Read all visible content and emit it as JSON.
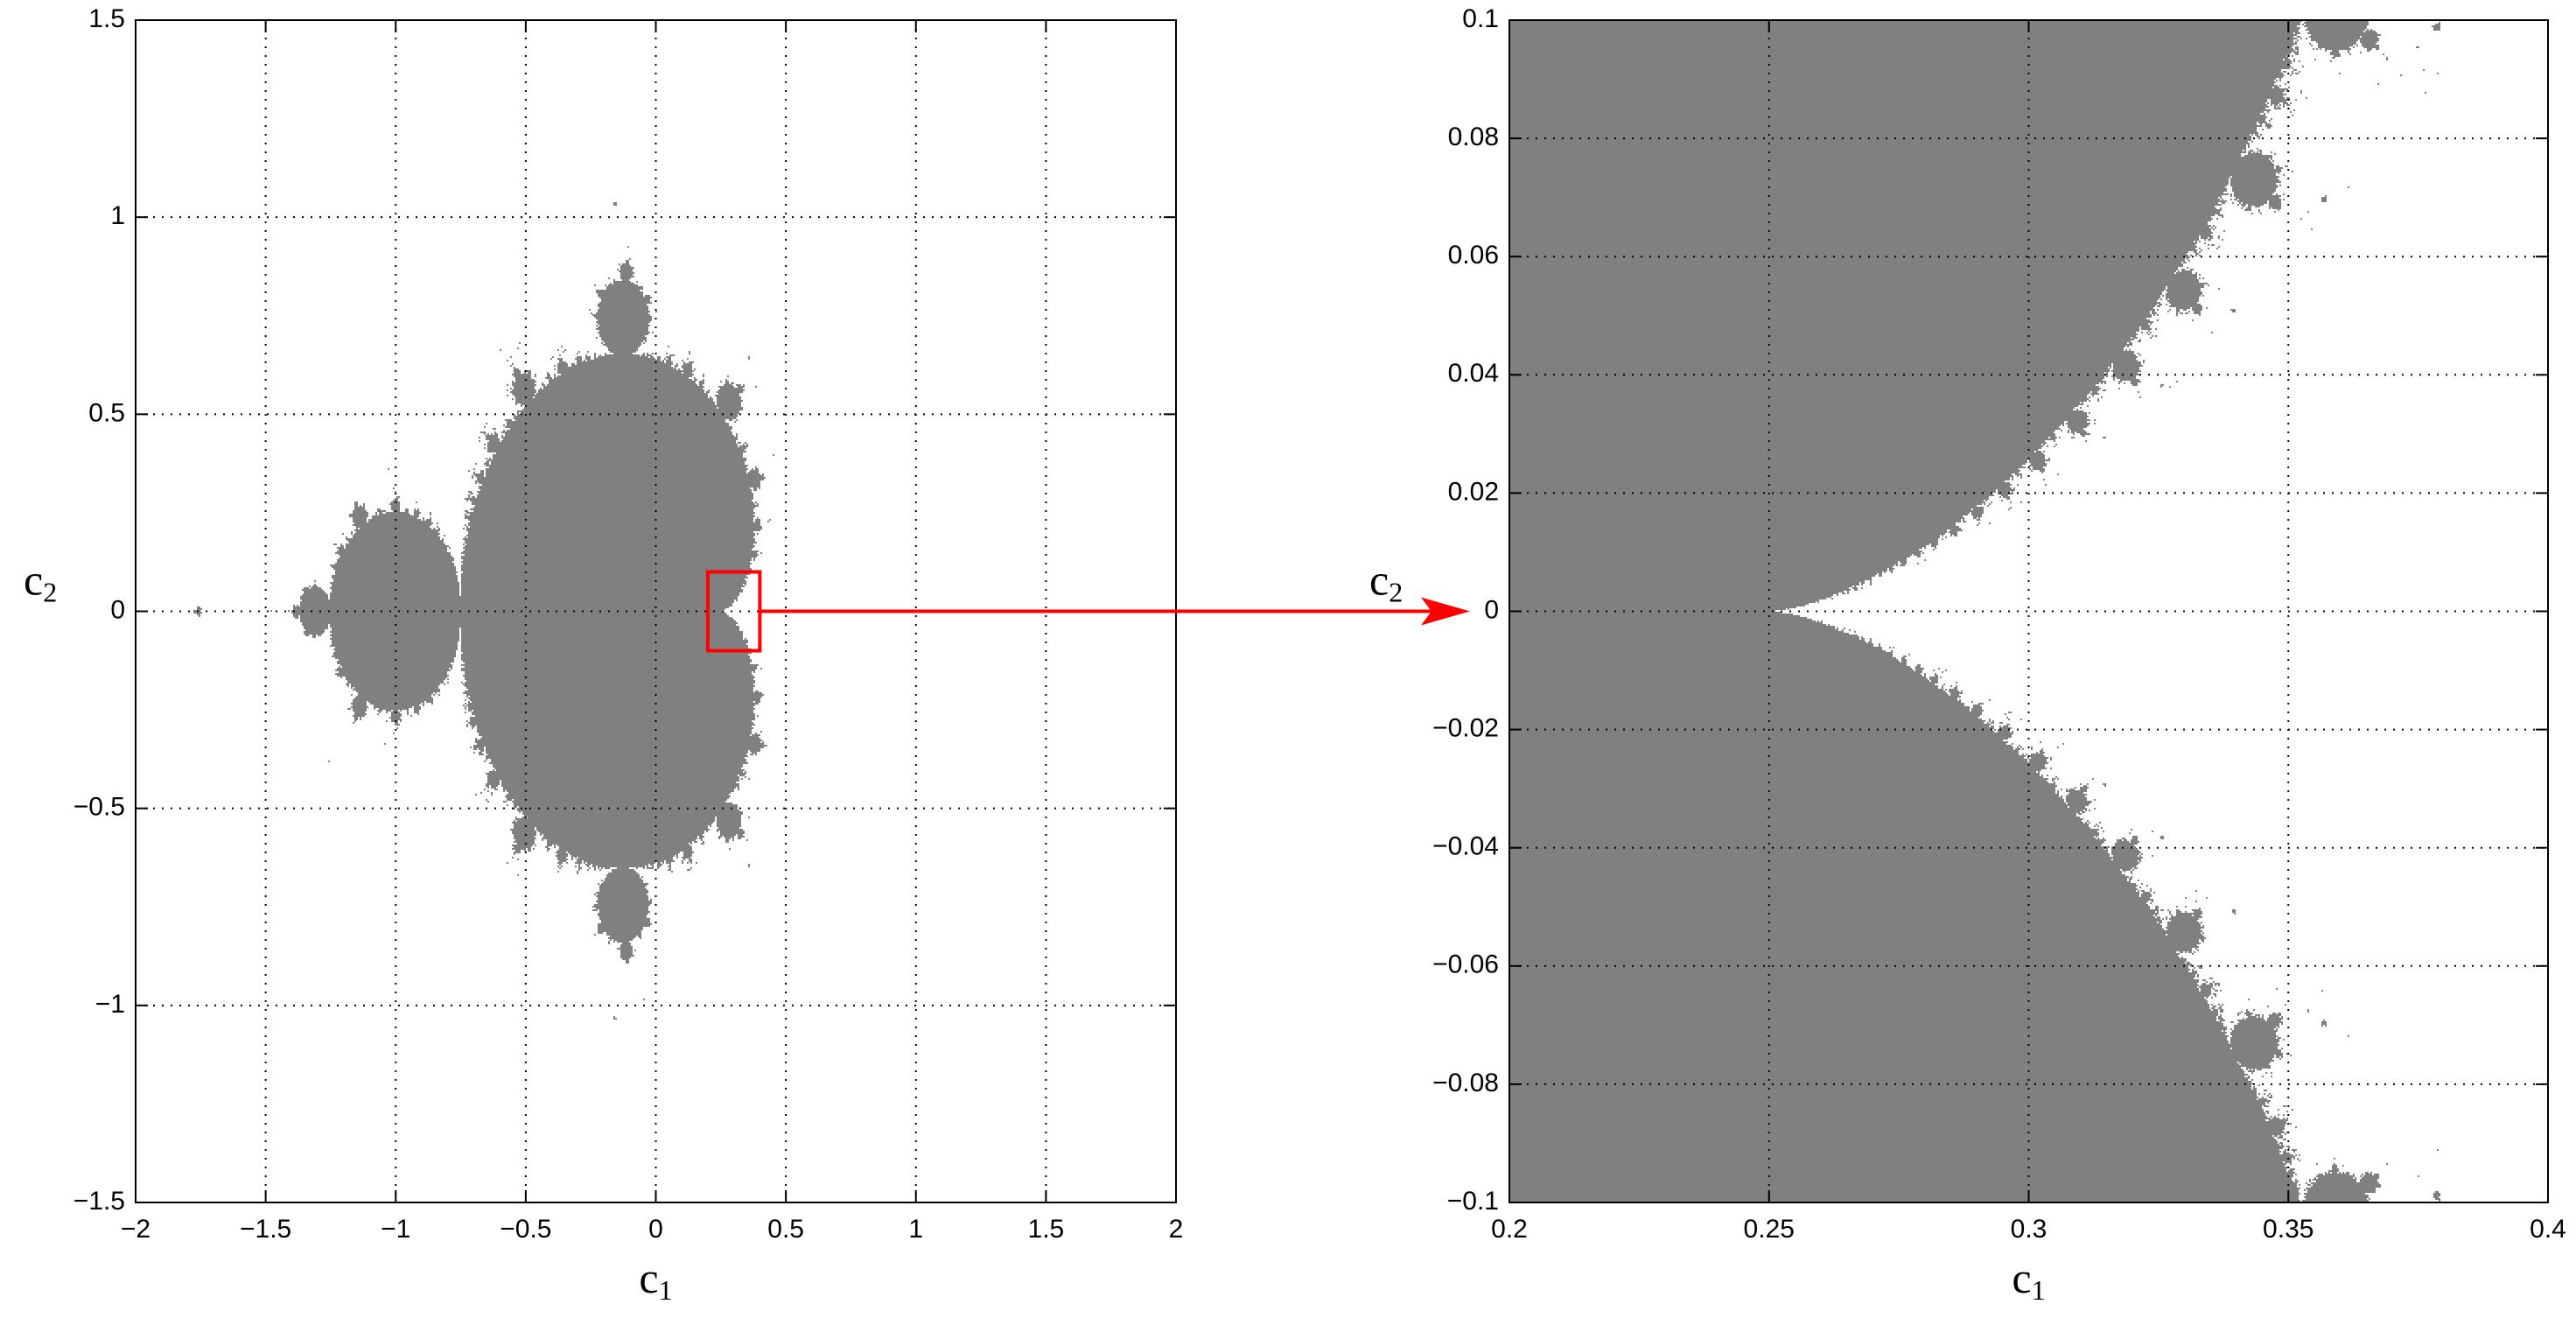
{
  "chart_data": [
    {
      "type": "mandelbrot",
      "color": "#808080",
      "xlim": [
        -2,
        2
      ],
      "ylim": [
        -1.5,
        1.5
      ],
      "xticks": [
        {
          "value": -2,
          "label": "−2"
        },
        {
          "value": -1.5,
          "label": "−1.5"
        },
        {
          "value": -1,
          "label": "−1"
        },
        {
          "value": -0.5,
          "label": "−0.5"
        },
        0,
        0.5,
        1,
        1.5,
        2
      ],
      "yticks": [
        {
          "value": -1.5,
          "label": "−1.5"
        },
        {
          "value": -1,
          "label": "−1"
        },
        {
          "value": -0.5,
          "label": "−0.5"
        },
        0,
        0.5,
        1,
        1.5
      ],
      "grid": true,
      "xlabel": [
        "c",
        "1"
      ],
      "ylabel": [
        "c",
        "2"
      ],
      "highlight": {
        "xlim": [
          0.2,
          0.4
        ],
        "ylim": [
          -0.1,
          0.1
        ],
        "color": "#ff0000"
      }
    },
    {
      "type": "mandelbrot",
      "color": "#808080",
      "xlim": [
        0.2,
        0.4
      ],
      "ylim": [
        -0.1,
        0.1
      ],
      "xticks": [
        0.2,
        0.25,
        0.3,
        0.35,
        0.4
      ],
      "yticks": [
        {
          "value": -0.1,
          "label": "−0.1"
        },
        {
          "value": -0.08,
          "label": "−0.08"
        },
        {
          "value": -0.06,
          "label": "−0.06"
        },
        {
          "value": -0.04,
          "label": "−0.04"
        },
        {
          "value": -0.02,
          "label": "−0.02"
        },
        0,
        0.02,
        0.04,
        0.06,
        0.08,
        0.1
      ],
      "grid": true,
      "xlabel": [
        "c",
        "1"
      ],
      "ylabel": [
        "c",
        "2"
      ]
    }
  ]
}
